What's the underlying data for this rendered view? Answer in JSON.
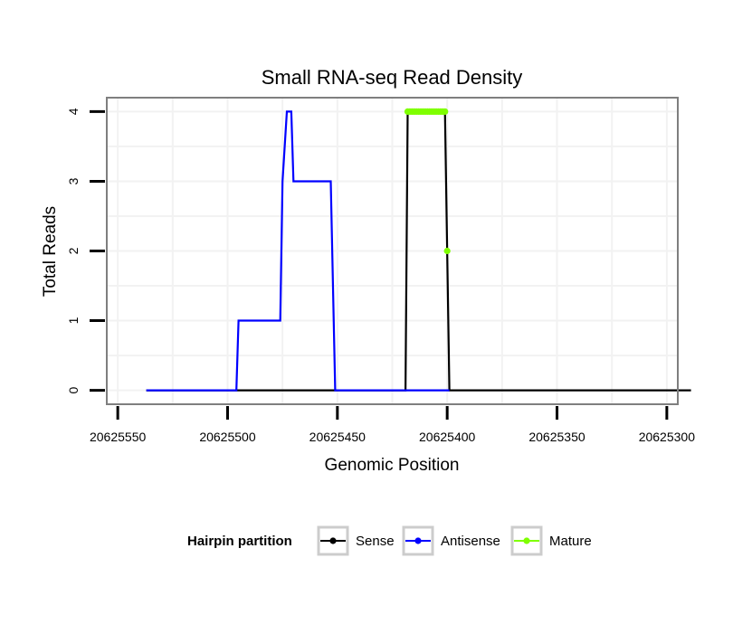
{
  "chart_data": {
    "type": "line",
    "title": "Small RNA-seq Read Density",
    "xlabel": "Genomic Position",
    "ylabel": "Total Reads",
    "x_reversed": true,
    "xlim": [
      20625555,
      20625295
    ],
    "ylim": [
      -0.2,
      4.2
    ],
    "x_ticks": [
      20625550,
      20625500,
      20625450,
      20625400,
      20625350,
      20625300
    ],
    "x_tick_labels": [
      "20625550",
      "20625500",
      "20625450",
      "20625400",
      "20625350",
      "20625300"
    ],
    "y_ticks": [
      0,
      1,
      2,
      3,
      4
    ],
    "y_tick_labels": [
      "0",
      "1",
      "2",
      "3",
      "4"
    ],
    "grid": true,
    "legend": {
      "title": "Hairpin partition",
      "position": "bottom",
      "entries": [
        "Sense",
        "Antisense",
        "Mature"
      ]
    },
    "colors": {
      "Sense": "#000000",
      "Antisense": "#0000ff",
      "Mature": "#7fff00",
      "panel_border": "#7f7f7f",
      "grid": "#f2f2f2"
    },
    "series": [
      {
        "name": "Sense",
        "style": "line",
        "x": [
          20625537,
          20625419,
          20625418,
          20625401,
          20625399,
          20625289
        ],
        "y": [
          0,
          0,
          4,
          4,
          0,
          0
        ]
      },
      {
        "name": "Antisense",
        "style": "line",
        "x": [
          20625537,
          20625496,
          20625495,
          20625476,
          20625475,
          20625473,
          20625471,
          20625470,
          20625453,
          20625451,
          20625399
        ],
        "y": [
          0,
          0,
          1,
          1,
          3,
          4,
          4,
          3,
          3,
          0,
          0
        ]
      },
      {
        "name": "Mature",
        "style": "points",
        "x": [
          20625418,
          20625417,
          20625416,
          20625415,
          20625414,
          20625413,
          20625412,
          20625411,
          20625410,
          20625409,
          20625408,
          20625407,
          20625406,
          20625405,
          20625404,
          20625403,
          20625402,
          20625401,
          20625400
        ],
        "y": [
          4,
          4,
          4,
          4,
          4,
          4,
          4,
          4,
          4,
          4,
          4,
          4,
          4,
          4,
          4,
          4,
          4,
          4,
          2
        ]
      }
    ]
  }
}
